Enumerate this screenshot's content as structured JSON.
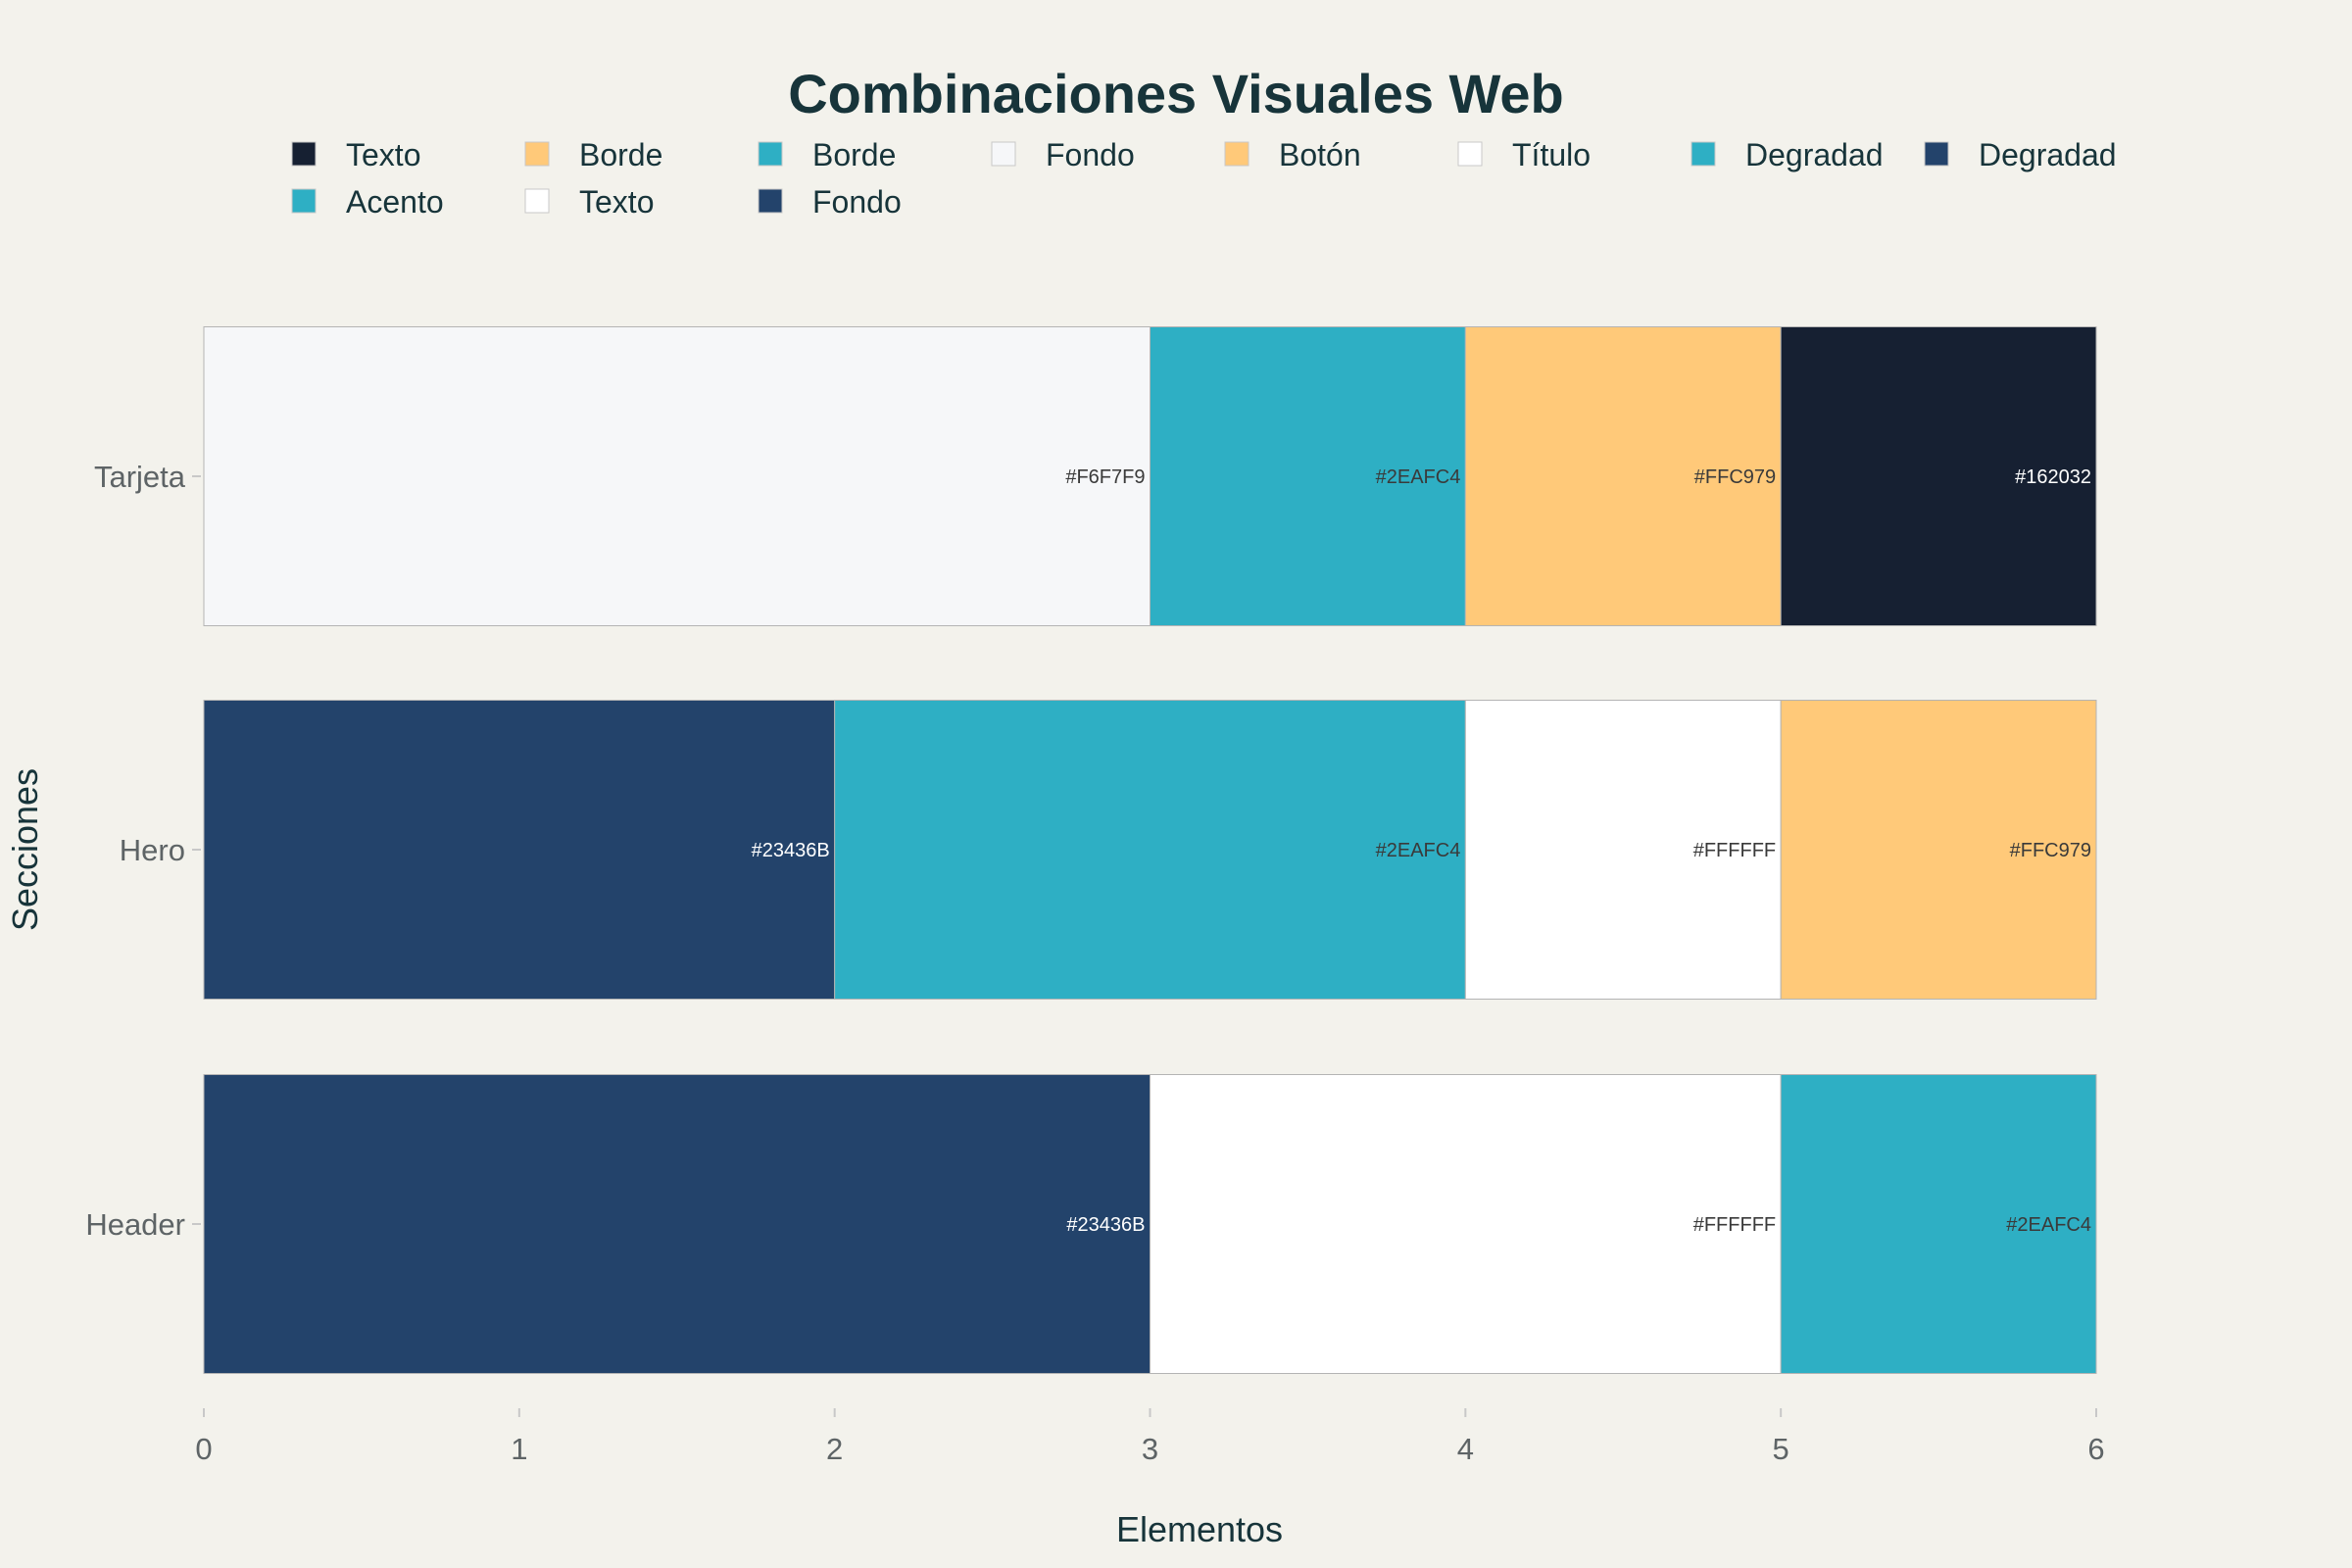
{
  "chart_data": {
    "type": "bar",
    "orientation": "horizontal",
    "barmode": "stack",
    "title": "Combinaciones Visuales Web",
    "xlabel": "Elementos",
    "ylabel": "Secciones",
    "xlim": [
      0,
      6
    ],
    "x_ticks": [
      "0",
      "1",
      "2",
      "3",
      "4",
      "5",
      "6"
    ],
    "grid": false,
    "legend_position": "top",
    "categories": [
      "Tarjeta",
      "Hero",
      "Header"
    ],
    "series": [
      {
        "name": "Fondo",
        "section": "Tarjeta",
        "value": 3,
        "color": "#F6F7F9",
        "label": "#F6F7F9"
      },
      {
        "name": "Acento",
        "section": "Tarjeta",
        "value": 1,
        "color": "#2EAFC4",
        "label": "#2EAFC4"
      },
      {
        "name": "Botón",
        "section": "Tarjeta",
        "value": 1,
        "color": "#FFC979",
        "label": "#FFC979"
      },
      {
        "name": "Texto",
        "section": "Tarjeta",
        "value": 1,
        "color": "#162032",
        "label": "#162032"
      },
      {
        "name": "Degradad",
        "section": "Hero",
        "value": 2,
        "color": "#23436B",
        "label": "#23436B"
      },
      {
        "name": "Degradad",
        "section": "Hero",
        "value": 2,
        "color": "#2EAFC4",
        "label": "#2EAFC4"
      },
      {
        "name": "Título",
        "section": "Hero",
        "value": 1,
        "color": "#FFFFFF",
        "label": "#FFFFFF"
      },
      {
        "name": "Borde",
        "section": "Hero",
        "value": 1,
        "color": "#FFC979",
        "label": "#FFC979"
      },
      {
        "name": "Fondo",
        "section": "Header",
        "value": 3,
        "color": "#23436B",
        "label": "#23436B"
      },
      {
        "name": "Texto",
        "section": "Header",
        "value": 2,
        "color": "#FFFFFF",
        "label": "#FFFFFF"
      },
      {
        "name": "Borde",
        "section": "Header",
        "value": 1,
        "color": "#2EAFC4",
        "label": "#2EAFC4"
      }
    ],
    "legend": [
      {
        "name": "Texto",
        "color": "#162032"
      },
      {
        "name": "Borde",
        "color": "#FFC979"
      },
      {
        "name": "Borde",
        "color": "#2EAFC4"
      },
      {
        "name": "Fondo",
        "color": "#F6F7F9"
      },
      {
        "name": "Botón",
        "color": "#FFC979"
      },
      {
        "name": "Título",
        "color": "#FFFFFF"
      },
      {
        "name": "Degradad",
        "color": "#2EAFC4"
      },
      {
        "name": "Degradad",
        "color": "#23436B"
      },
      {
        "name": "Acento",
        "color": "#2EAFC4"
      },
      {
        "name": "Texto",
        "color": "#FFFFFF"
      },
      {
        "name": "Fondo",
        "color": "#23436B"
      }
    ],
    "colors": {
      "background": "#F3F2EC",
      "title": "#17343A",
      "tick": "#5E6466"
    }
  }
}
